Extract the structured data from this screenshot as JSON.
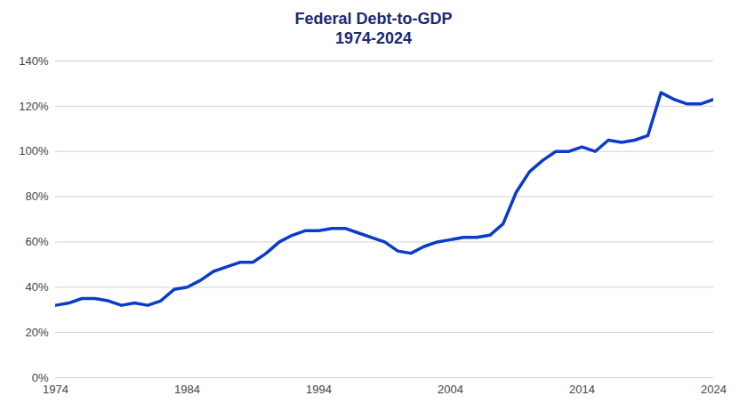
{
  "chart_data": {
    "type": "line",
    "title": "Federal Debt-to-GDP",
    "subtitle": "1974-2024",
    "x": [
      1974,
      1975,
      1976,
      1977,
      1978,
      1979,
      1980,
      1981,
      1982,
      1983,
      1984,
      1985,
      1986,
      1987,
      1988,
      1989,
      1990,
      1991,
      1992,
      1993,
      1994,
      1995,
      1996,
      1997,
      1998,
      1999,
      2000,
      2001,
      2002,
      2003,
      2004,
      2005,
      2006,
      2007,
      2008,
      2009,
      2010,
      2011,
      2012,
      2013,
      2014,
      2015,
      2016,
      2017,
      2018,
      2019,
      2020,
      2021,
      2022,
      2023,
      2024
    ],
    "values": [
      32,
      33,
      35,
      35,
      34,
      32,
      33,
      32,
      34,
      39,
      40,
      43,
      47,
      49,
      51,
      51,
      55,
      60,
      63,
      65,
      65,
      66,
      66,
      64,
      62,
      60,
      56,
      55,
      58,
      60,
      61,
      62,
      62,
      63,
      68,
      82,
      91,
      96,
      100,
      100,
      102,
      100,
      105,
      104,
      105,
      107,
      126,
      123,
      121,
      121,
      123
    ],
    "color": "#0a3cc8",
    "xlim": [
      1974,
      2024
    ],
    "xticks": [
      1974,
      1984,
      1994,
      2004,
      2014,
      2024
    ],
    "ylim": [
      0,
      140
    ],
    "yticks": [
      {
        "value": 0,
        "label": "0%"
      },
      {
        "value": 20,
        "label": "20%"
      },
      {
        "value": 40,
        "label": "40%"
      },
      {
        "value": 60,
        "label": "60%"
      },
      {
        "value": 80,
        "label": "80%"
      },
      {
        "value": 100,
        "label": "100%"
      },
      {
        "value": 120,
        "label": "120%"
      },
      {
        "value": 140,
        "label": "140%"
      }
    ],
    "grid": true
  }
}
